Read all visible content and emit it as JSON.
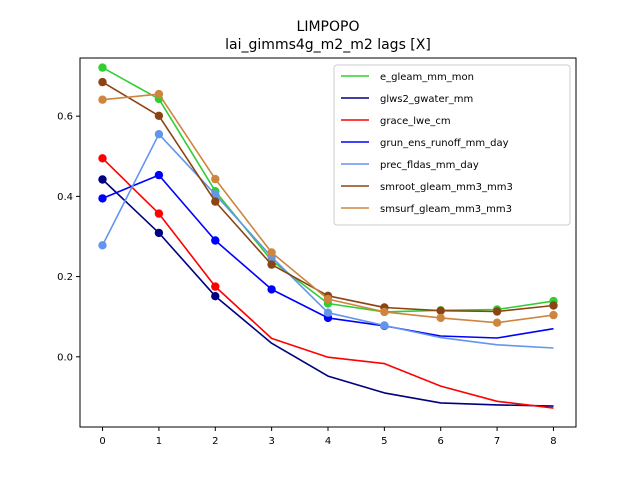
{
  "chart_data": {
    "type": "line",
    "title": "LIMPOPO",
    "subtitle": "lai_gimms4g_m2_m2 lags [X]",
    "xlabel": "",
    "ylabel": "",
    "x": [
      0,
      1,
      2,
      3,
      4,
      5,
      6,
      7,
      8
    ],
    "xlim": [
      -0.4,
      8.4
    ],
    "ylim": [
      -0.175,
      0.745
    ],
    "xticks": [
      "0",
      "1",
      "2",
      "3",
      "4",
      "5",
      "6",
      "7",
      "8"
    ],
    "yticks": [
      "0.0",
      "0.2",
      "0.4",
      "0.6"
    ],
    "ytick_values": [
      0.0,
      0.2,
      0.4,
      0.6
    ],
    "grid": false,
    "legend_position": "upper-right",
    "series": [
      {
        "name": "e_gleam_mm_mon",
        "color": "#32cd32",
        "values": [
          0.721,
          0.643,
          0.413,
          0.24,
          0.133,
          0.112,
          0.116,
          0.118,
          0.139
        ],
        "markers": [
          0,
          1,
          2,
          3,
          4,
          5,
          6,
          7,
          8
        ]
      },
      {
        "name": "glws2_gwater_mm",
        "color": "#000080",
        "values": [
          0.442,
          0.309,
          0.151,
          0.034,
          -0.048,
          -0.09,
          -0.115,
          -0.12,
          -0.123
        ],
        "markers": [
          0,
          1,
          2
        ]
      },
      {
        "name": "grace_lwe_cm",
        "color": "#ff0000",
        "values": [
          0.495,
          0.357,
          0.175,
          0.046,
          -0.001,
          -0.017,
          -0.073,
          -0.111,
          -0.128
        ],
        "markers": [
          0,
          1,
          2
        ]
      },
      {
        "name": "grun_ens_runoff_mm_day",
        "color": "#0000ff",
        "values": [
          0.395,
          0.453,
          0.29,
          0.168,
          0.097,
          0.077,
          0.052,
          0.047,
          0.07
        ],
        "markers": [
          0,
          1,
          2,
          3,
          4,
          5
        ]
      },
      {
        "name": "prec_fldas_mm_day",
        "color": "#6495ed",
        "values": [
          0.278,
          0.555,
          0.405,
          0.249,
          0.11,
          0.078,
          0.048,
          0.03,
          0.022
        ],
        "markers": [
          0,
          1,
          2,
          3,
          4,
          5
        ]
      },
      {
        "name": "smroot_gleam_mm3_mm3",
        "color": "#8b4513",
        "values": [
          0.685,
          0.601,
          0.387,
          0.23,
          0.152,
          0.123,
          0.115,
          0.113,
          0.128
        ],
        "markers": [
          0,
          1,
          2,
          3,
          4,
          5,
          6,
          7,
          8
        ]
      },
      {
        "name": "smsurf_gleam_mm3_mm3",
        "color": "#cd853f",
        "values": [
          0.641,
          0.655,
          0.443,
          0.26,
          0.144,
          0.112,
          0.097,
          0.085,
          0.104
        ],
        "markers": [
          0,
          1,
          2,
          3,
          4,
          5,
          6,
          7,
          8
        ]
      }
    ]
  }
}
